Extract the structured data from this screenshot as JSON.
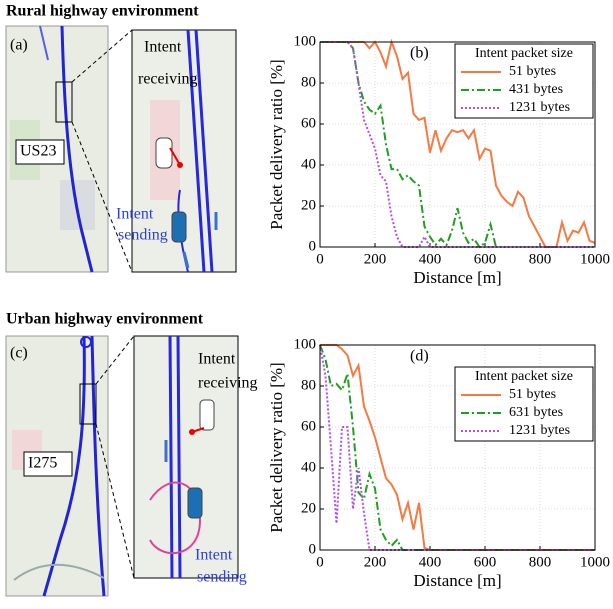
{
  "sections": [
    {
      "title": "Rural highway environment",
      "panel": "(a)",
      "road": "US23",
      "top_label": [
        "Intent",
        "receiving"
      ],
      "bottom_label": [
        "Intent",
        "sending"
      ]
    },
    {
      "title": "Urban highway environment",
      "panel": "(c)",
      "road": "I275",
      "top_label": [
        "Intent",
        "receiving"
      ],
      "bottom_label": [
        "Intent",
        "sending"
      ]
    }
  ],
  "chart_data": [
    {
      "type": "line",
      "annotation": "(b)",
      "x_label": "Distance [m]",
      "y_label": "Packet delivery ratio [%]",
      "xlim": [
        0,
        1000
      ],
      "xticks": [
        0,
        200,
        400,
        600,
        800,
        1000
      ],
      "ylim": [
        0,
        100
      ],
      "yticks": [
        0,
        20,
        40,
        60,
        80,
        100
      ],
      "grid": true,
      "legend_title": "Intent packet size",
      "legend": "upper right",
      "series": [
        {
          "name": "51 bytes",
          "color": "#f47a42",
          "linestyle": "solid",
          "x": [
            0,
            160,
            180,
            200,
            220,
            240,
            260,
            280,
            300,
            320,
            340,
            360,
            380,
            400,
            420,
            440,
            460,
            480,
            500,
            520,
            540,
            560,
            580,
            600,
            620,
            640,
            660,
            680,
            700,
            720,
            740,
            760,
            780,
            800,
            820,
            840,
            860,
            880,
            900,
            920,
            940,
            960,
            980,
            1000
          ],
          "values": [
            100,
            100,
            97,
            100,
            95,
            88,
            100,
            93,
            82,
            85,
            65,
            62,
            63,
            46,
            57,
            47,
            53,
            57,
            56,
            57,
            53,
            57,
            43,
            48,
            47,
            30,
            25,
            22,
            20,
            27,
            24,
            15,
            10,
            5,
            0,
            0,
            0,
            12,
            3,
            8,
            7,
            12,
            3,
            2
          ]
        },
        {
          "name": "431 bytes",
          "color": "#1f9e1f",
          "linestyle": "dashdot",
          "x": [
            0,
            100,
            120,
            140,
            160,
            180,
            200,
            220,
            240,
            260,
            280,
            300,
            320,
            340,
            360,
            380,
            400,
            420,
            440,
            460,
            480,
            500,
            520,
            540,
            560,
            580,
            600,
            620,
            640
          ],
          "values": [
            100,
            100,
            97,
            80,
            71,
            67,
            65,
            69,
            50,
            38,
            38,
            33,
            35,
            32,
            30,
            10,
            5,
            1,
            4,
            1,
            8,
            19,
            7,
            2,
            4,
            0,
            2,
            11,
            0
          ]
        },
        {
          "name": "1231 bytes",
          "color": "#b04fe6",
          "linestyle": "dotted",
          "x": [
            0,
            100,
            120,
            140,
            160,
            180,
            200,
            220,
            240,
            260,
            280,
            300,
            360,
            380,
            400,
            1000
          ],
          "values": [
            100,
            100,
            97,
            80,
            62,
            55,
            48,
            35,
            32,
            15,
            5,
            0,
            0,
            5,
            0,
            0
          ]
        }
      ]
    },
    {
      "type": "line",
      "annotation": "(d)",
      "x_label": "Distance [m]",
      "y_label": "Packet delivery ratio [%]",
      "xlim": [
        0,
        1000
      ],
      "xticks": [
        0,
        200,
        400,
        600,
        800,
        1000
      ],
      "ylim": [
        0,
        100
      ],
      "yticks": [
        0,
        20,
        40,
        60,
        80,
        100
      ],
      "grid": true,
      "legend_title": "Intent packet size",
      "legend": "upper right",
      "series": [
        {
          "name": "51 bytes",
          "color": "#f47a42",
          "linestyle": "solid",
          "x": [
            0,
            60,
            80,
            100,
            120,
            140,
            160,
            180,
            200,
            220,
            240,
            260,
            280,
            300,
            320,
            340,
            360,
            380,
            400,
            1000
          ],
          "values": [
            100,
            100,
            98,
            95,
            85,
            90,
            70,
            63,
            55,
            45,
            35,
            32,
            27,
            15,
            23,
            10,
            23,
            1,
            0,
            0
          ]
        },
        {
          "name": "631 bytes",
          "color": "#1f9e1f",
          "linestyle": "dashdot",
          "x": [
            0,
            20,
            40,
            60,
            80,
            100,
            120,
            140,
            160,
            180,
            200,
            220,
            240,
            260,
            280,
            300,
            1000
          ],
          "values": [
            100,
            93,
            80,
            81,
            78,
            86,
            60,
            28,
            25,
            37,
            30,
            10,
            5,
            2,
            5,
            0,
            0
          ]
        },
        {
          "name": "1231 bytes",
          "color": "#b04fe6",
          "linestyle": "dotted",
          "x": [
            0,
            20,
            40,
            60,
            80,
            100,
            120,
            140,
            160,
            180,
            1000
          ],
          "values": [
            100,
            85,
            50,
            13,
            60,
            60,
            20,
            40,
            18,
            0,
            0
          ]
        }
      ]
    }
  ]
}
